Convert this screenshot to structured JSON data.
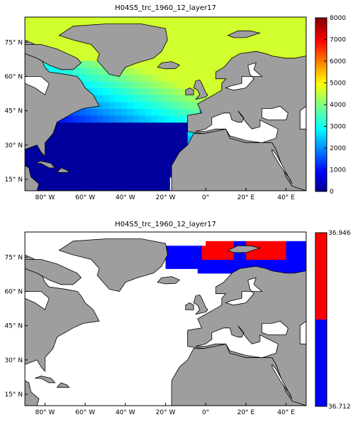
{
  "colors": {
    "land": "#9e9e9e",
    "ocean_missing": "#ffffff",
    "coast": "#000000",
    "panel2_high": "#ff0000",
    "panel2_low": "#0000ff"
  },
  "map": {
    "lon_range": [
      -90,
      50
    ],
    "lat_range": [
      10,
      86
    ],
    "lon_ticks": [
      "80° W",
      "60° W",
      "40° W",
      "20° W",
      "0°",
      "20° E",
      "40° E"
    ],
    "lat_ticks": [
      "75° N",
      "60° N",
      "45° N",
      "30° N",
      "15° N"
    ]
  },
  "panels": [
    {
      "title": "H04S5_trc_1960_12_layer17",
      "colormap": "jet",
      "colorbar_min": 0,
      "colorbar_max": 8000,
      "colorbar_ticks": [
        "8000",
        "7000",
        "6000",
        "5000",
        "4000",
        "3000",
        "2000",
        "1000",
        "0"
      ]
    },
    {
      "title": "H04S5_trc_1960_12_layer17",
      "colormap": "two-class",
      "colorbar_min": 36.712,
      "colorbar_max": 36.946,
      "colorbar_ticks": [
        "36.946",
        "36.712"
      ]
    }
  ]
}
